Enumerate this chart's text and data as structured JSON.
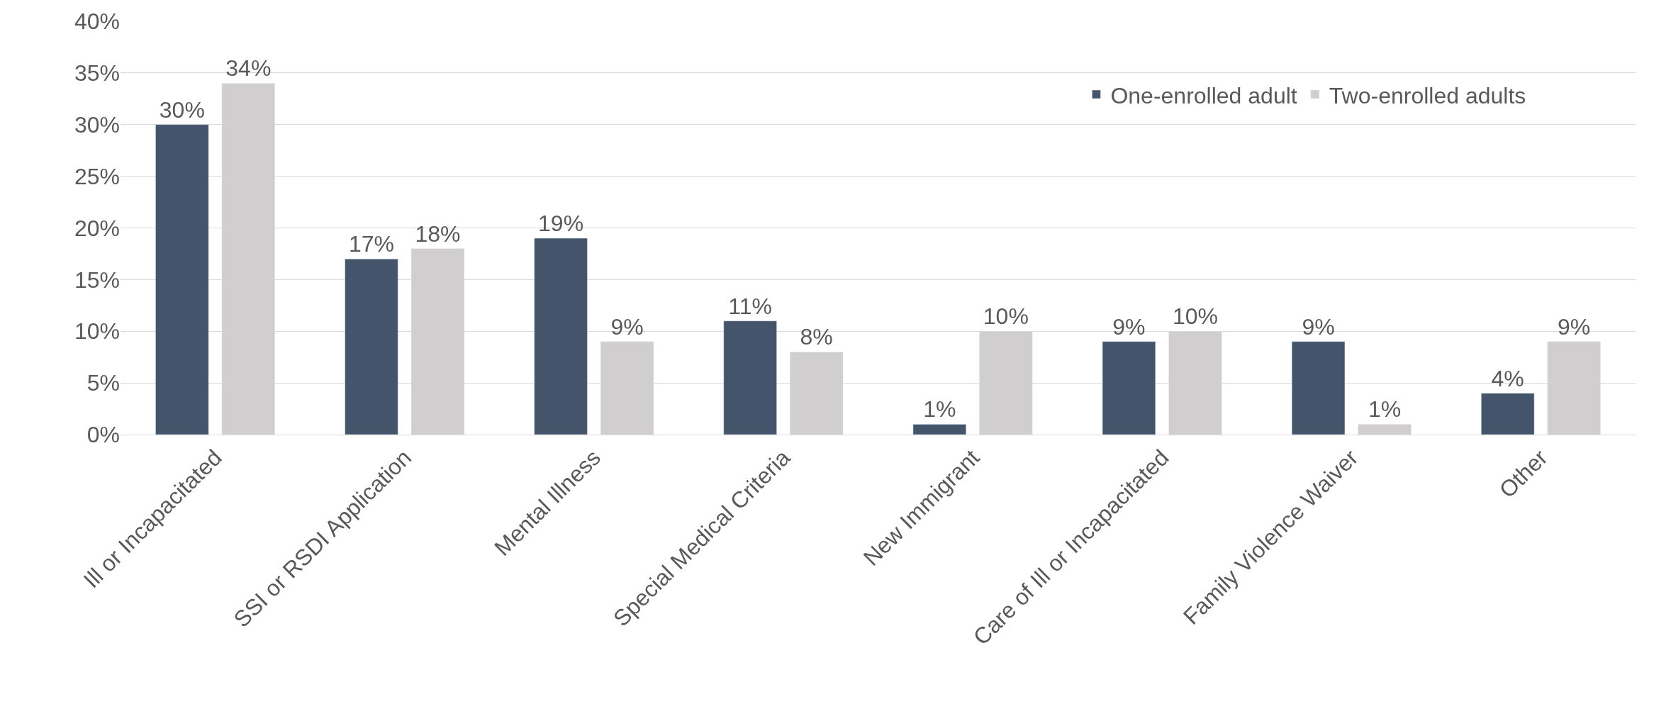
{
  "chart_data": {
    "type": "bar",
    "categories": [
      "Ill or Incapacitated",
      "SSI or RSDI Application",
      "Mental Illness",
      "Special Medical Criteria",
      "New Immigrant",
      "Care of Ill or Incapacitated",
      "Family Violence Waiver",
      "Other"
    ],
    "series": [
      {
        "name": "One-enrolled adult",
        "color": "#44546a",
        "values": [
          30,
          17,
          19,
          11,
          1,
          9,
          9,
          4
        ],
        "value_labels": [
          "30%",
          "17%",
          "19%",
          "11%",
          "1%",
          "9%",
          "9%",
          "4%"
        ]
      },
      {
        "name": "Two-enrolled adults",
        "color": "#d0cece",
        "values": [
          34,
          18,
          9,
          8,
          10,
          10,
          1,
          9
        ],
        "value_labels": [
          "34%",
          "18%",
          "9%",
          "8%",
          "10%",
          "10%",
          "1%",
          "9%"
        ]
      }
    ],
    "ylim": [
      0,
      40
    ],
    "yticks": [
      {
        "value": 0,
        "label": "0%"
      },
      {
        "value": 5,
        "label": "5%"
      },
      {
        "value": 10,
        "label": "10%"
      },
      {
        "value": 15,
        "label": "15%"
      },
      {
        "value": 20,
        "label": "20%"
      },
      {
        "value": 25,
        "label": "25%"
      },
      {
        "value": 30,
        "label": "30%"
      },
      {
        "value": 35,
        "label": "35%"
      },
      {
        "value": 40,
        "label": "40%"
      }
    ],
    "grid": "y",
    "legend": "top right"
  }
}
